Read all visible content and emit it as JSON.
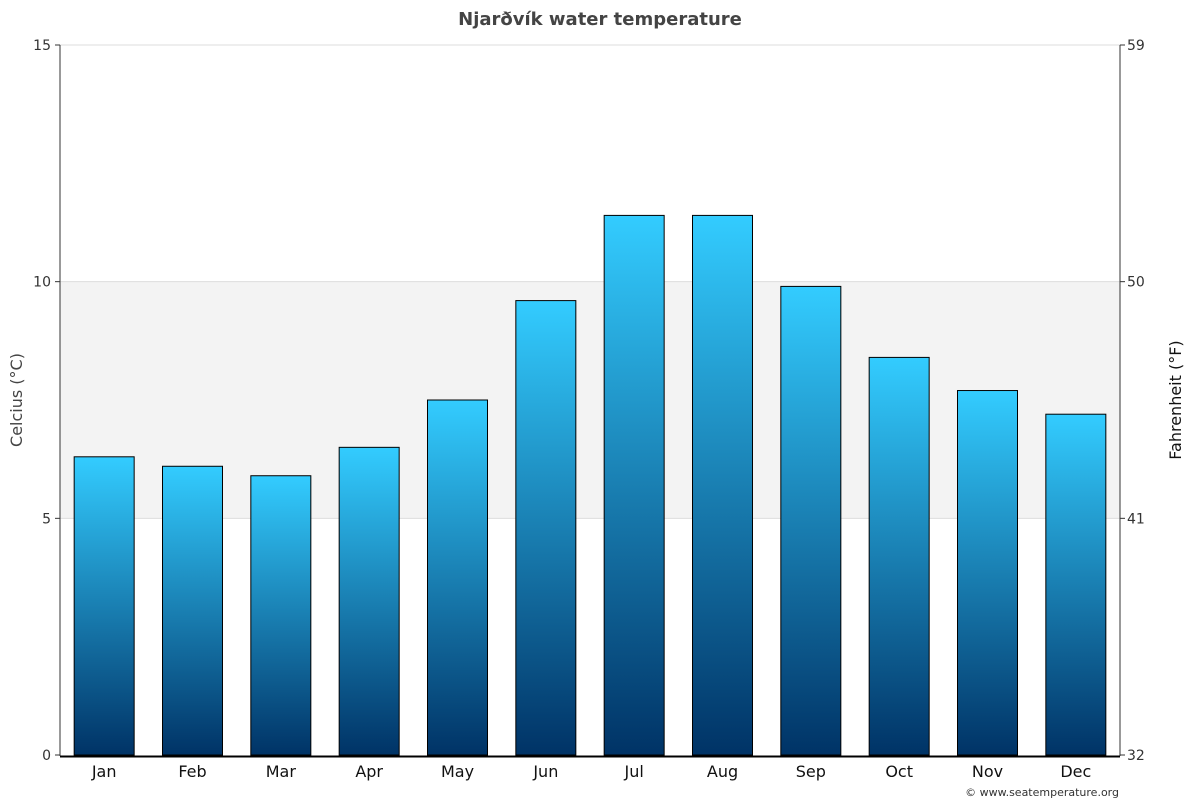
{
  "chart_data": {
    "type": "bar",
    "title": "Njarðvík water temperature",
    "categories": [
      "Jan",
      "Feb",
      "Mar",
      "Apr",
      "May",
      "Jun",
      "Jul",
      "Aug",
      "Sep",
      "Oct",
      "Nov",
      "Dec"
    ],
    "values": [
      6.3,
      6.1,
      5.9,
      6.5,
      7.5,
      9.6,
      11.4,
      11.4,
      9.9,
      8.4,
      7.7,
      7.2
    ],
    "ylabel": "Celcius (°C)",
    "ylabel_right": "Fahrenheit (°F)",
    "ylim": [
      0,
      15
    ],
    "yticks": [
      "0",
      "5",
      "10",
      "15"
    ],
    "yticks_right": [
      "32",
      "41",
      "50",
      "59"
    ],
    "grid": true,
    "highlight_band": [
      5,
      10
    ],
    "colors": {
      "bar_top": "#33ccff",
      "bar_bottom": "#003366",
      "band": "#f3f3f3"
    }
  },
  "credit": "© www.seatemperature.org"
}
